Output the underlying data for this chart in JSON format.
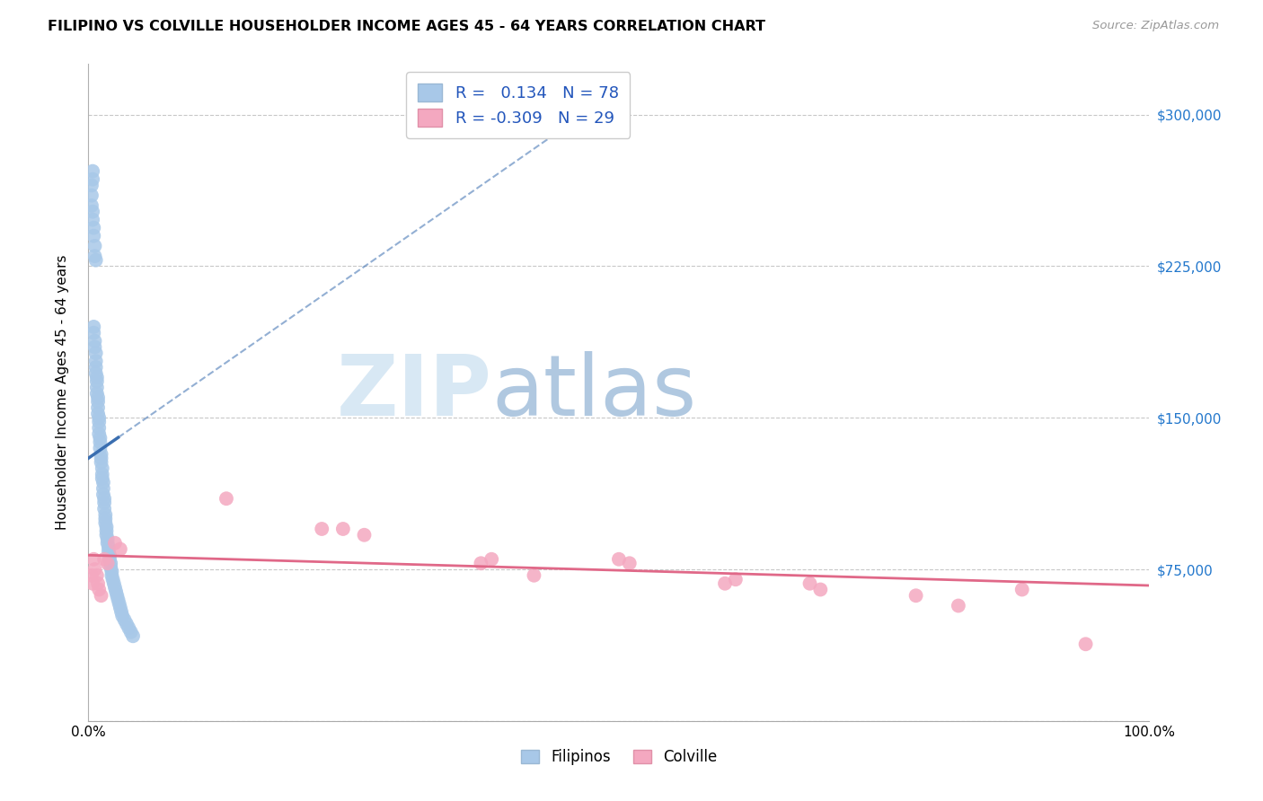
{
  "title": "FILIPINO VS COLVILLE HOUSEHOLDER INCOME AGES 45 - 64 YEARS CORRELATION CHART",
  "source": "Source: ZipAtlas.com",
  "ylabel": "Householder Income Ages 45 - 64 years",
  "xlim": [
    0.0,
    1.0
  ],
  "ylim": [
    0,
    325000
  ],
  "yticks": [
    0,
    75000,
    150000,
    225000,
    300000
  ],
  "ytick_labels": [
    "",
    "$75,000",
    "$150,000",
    "$225,000",
    "$300,000"
  ],
  "filipino_R": 0.134,
  "filipino_N": 78,
  "colville_R": -0.309,
  "colville_N": 29,
  "filipino_color": "#a8c8e8",
  "colville_color": "#f4a8c0",
  "filipino_line_color": "#3a6eb0",
  "colville_line_color": "#e06888",
  "filipino_scatter_x": [
    0.003,
    0.003,
    0.003,
    0.004,
    0.004,
    0.004,
    0.004,
    0.005,
    0.005,
    0.005,
    0.005,
    0.006,
    0.006,
    0.006,
    0.006,
    0.007,
    0.007,
    0.007,
    0.007,
    0.007,
    0.008,
    0.008,
    0.008,
    0.008,
    0.009,
    0.009,
    0.009,
    0.009,
    0.01,
    0.01,
    0.01,
    0.01,
    0.011,
    0.011,
    0.011,
    0.012,
    0.012,
    0.012,
    0.013,
    0.013,
    0.013,
    0.014,
    0.014,
    0.014,
    0.015,
    0.015,
    0.015,
    0.016,
    0.016,
    0.016,
    0.017,
    0.017,
    0.017,
    0.018,
    0.018,
    0.019,
    0.019,
    0.02,
    0.02,
    0.021,
    0.021,
    0.022,
    0.022,
    0.023,
    0.024,
    0.025,
    0.026,
    0.027,
    0.028,
    0.029,
    0.03,
    0.031,
    0.032,
    0.034,
    0.036,
    0.038,
    0.04,
    0.042
  ],
  "filipino_scatter_y": [
    265000,
    260000,
    255000,
    272000,
    268000,
    252000,
    248000,
    244000,
    240000,
    195000,
    192000,
    235000,
    230000,
    188000,
    185000,
    228000,
    182000,
    178000,
    175000,
    172000,
    170000,
    168000,
    165000,
    162000,
    160000,
    158000,
    155000,
    152000,
    150000,
    148000,
    145000,
    142000,
    140000,
    138000,
    135000,
    132000,
    130000,
    128000,
    125000,
    122000,
    120000,
    118000,
    115000,
    112000,
    110000,
    108000,
    105000,
    102000,
    100000,
    98000,
    96000,
    94000,
    92000,
    90000,
    88000,
    86000,
    84000,
    82000,
    80000,
    78000,
    76000,
    74000,
    72000,
    70000,
    68000,
    66000,
    64000,
    62000,
    60000,
    58000,
    56000,
    54000,
    52000,
    50000,
    48000,
    46000,
    44000,
    42000
  ],
  "colville_scatter_x": [
    0.003,
    0.004,
    0.005,
    0.006,
    0.008,
    0.009,
    0.01,
    0.012,
    0.015,
    0.018,
    0.025,
    0.03,
    0.13,
    0.22,
    0.24,
    0.26,
    0.37,
    0.38,
    0.42,
    0.5,
    0.51,
    0.6,
    0.61,
    0.68,
    0.69,
    0.78,
    0.82,
    0.88,
    0.94
  ],
  "colville_scatter_y": [
    72000,
    68000,
    80000,
    75000,
    72000,
    68000,
    65000,
    62000,
    80000,
    78000,
    88000,
    85000,
    110000,
    95000,
    95000,
    92000,
    78000,
    80000,
    72000,
    80000,
    78000,
    68000,
    70000,
    68000,
    65000,
    62000,
    57000,
    65000,
    38000
  ]
}
